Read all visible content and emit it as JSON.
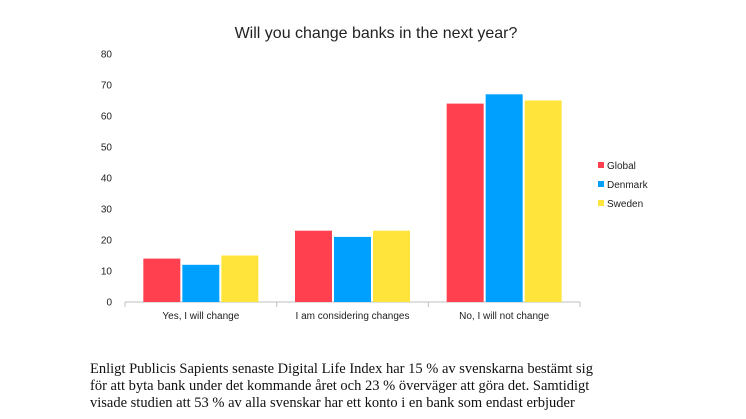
{
  "chart_data": {
    "type": "bar",
    "title": "Will you change banks in the next year?",
    "categories": [
      "Yes, I will change",
      "I am considering changes",
      "No, I will not change"
    ],
    "series": [
      {
        "name": "Global",
        "color": "#ff404f",
        "values": [
          14,
          23,
          64
        ]
      },
      {
        "name": "Denmark",
        "color": "#00a0ff",
        "values": [
          12,
          21,
          67
        ]
      },
      {
        "name": "Sweden",
        "color": "#ffe53b",
        "values": [
          15,
          23,
          65
        ]
      }
    ],
    "ylim": [
      0,
      80
    ],
    "yticks": [
      0,
      10,
      20,
      30,
      40,
      50,
      60,
      70,
      80
    ],
    "grid": false,
    "legend_position": "right"
  },
  "body_text": {
    "lines": [
      "Enligt Publicis Sapients senaste Digital Life Index har 15 % av svenskarna bestämt sig",
      "för att byta bank under det kommande året och 23 % överväger att göra det. Samtidigt",
      "visade studien att 53 % av alla svenskar har ett konto i en bank som endast erbjuder"
    ]
  }
}
